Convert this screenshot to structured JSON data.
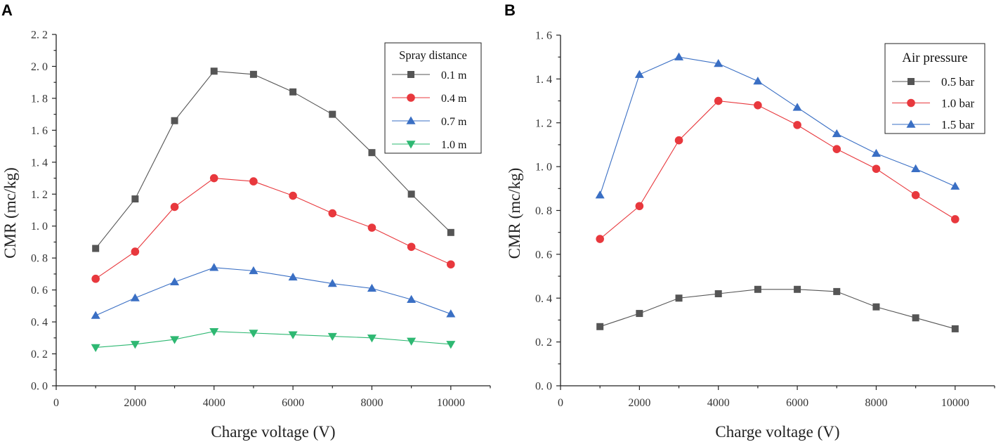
{
  "chart_data": [
    {
      "panel": "A",
      "type": "line",
      "xlabel": "Charge voltage (V)",
      "ylabel": "CMR (mc/kg)",
      "xlim": [
        0,
        11000
      ],
      "ylim": [
        0,
        2.2
      ],
      "xticks": [
        "0",
        "2000",
        "4000",
        "6000",
        "8000",
        "10000"
      ],
      "yticks": [
        "0. 0",
        "0. 2",
        "0. 4",
        "0. 6",
        "0. 8",
        "1. 0",
        "1. 2",
        "1. 4",
        "1. 6",
        "1. 8",
        "2. 0",
        "2. 2"
      ],
      "legend_title": "Spray distance",
      "legend_position": "top-right",
      "x": [
        1000,
        2000,
        3000,
        4000,
        5000,
        6000,
        7000,
        8000,
        9000,
        10000
      ],
      "series": [
        {
          "name": "0.1 m",
          "marker": "square",
          "color": "#555555",
          "values": [
            0.86,
            1.17,
            1.66,
            1.97,
            1.95,
            1.84,
            1.7,
            1.46,
            1.2,
            0.96
          ]
        },
        {
          "name": "0.4 m",
          "marker": "circle",
          "color": "#e8383d",
          "values": [
            0.67,
            0.84,
            1.12,
            1.3,
            1.28,
            1.19,
            1.08,
            0.99,
            0.87,
            0.76
          ]
        },
        {
          "name": "0.7 m",
          "marker": "triangle-up",
          "color": "#3a6fc4",
          "values": [
            0.44,
            0.55,
            0.65,
            0.74,
            0.72,
            0.68,
            0.64,
            0.61,
            0.54,
            0.45
          ]
        },
        {
          "name": "1.0 m",
          "marker": "triangle-down",
          "color": "#2eb872",
          "values": [
            0.24,
            0.26,
            0.29,
            0.34,
            0.33,
            0.32,
            0.31,
            0.3,
            0.28,
            0.26
          ]
        }
      ]
    },
    {
      "panel": "B",
      "type": "line",
      "xlabel": "Charge voltage (V)",
      "ylabel": "CMR (mc/kg)",
      "xlim": [
        0,
        11000
      ],
      "ylim": [
        0,
        1.6
      ],
      "xticks": [
        "0",
        "2000",
        "4000",
        "6000",
        "8000",
        "10000"
      ],
      "yticks": [
        "0. 0",
        "0. 2",
        "0. 4",
        "0. 6",
        "0. 8",
        "1. 0",
        "1. 2",
        "1. 4",
        "1. 6"
      ],
      "legend_title": "Air pressure",
      "legend_position": "top-right",
      "x": [
        1000,
        2000,
        3000,
        4000,
        5000,
        6000,
        7000,
        8000,
        9000,
        10000
      ],
      "series": [
        {
          "name": "0.5 bar",
          "marker": "square",
          "color": "#555555",
          "values": [
            0.27,
            0.33,
            0.4,
            0.42,
            0.44,
            0.44,
            0.43,
            0.36,
            0.31,
            0.26
          ]
        },
        {
          "name": "1.0 bar",
          "marker": "circle",
          "color": "#e8383d",
          "values": [
            0.67,
            0.82,
            1.12,
            1.3,
            1.28,
            1.19,
            1.08,
            0.99,
            0.87,
            0.76
          ]
        },
        {
          "name": "1.5 bar",
          "marker": "triangle-up",
          "color": "#3a6fc4",
          "values": [
            0.87,
            1.42,
            1.5,
            1.47,
            1.39,
            1.27,
            1.15,
            1.06,
            0.99,
            0.91
          ]
        }
      ]
    }
  ]
}
